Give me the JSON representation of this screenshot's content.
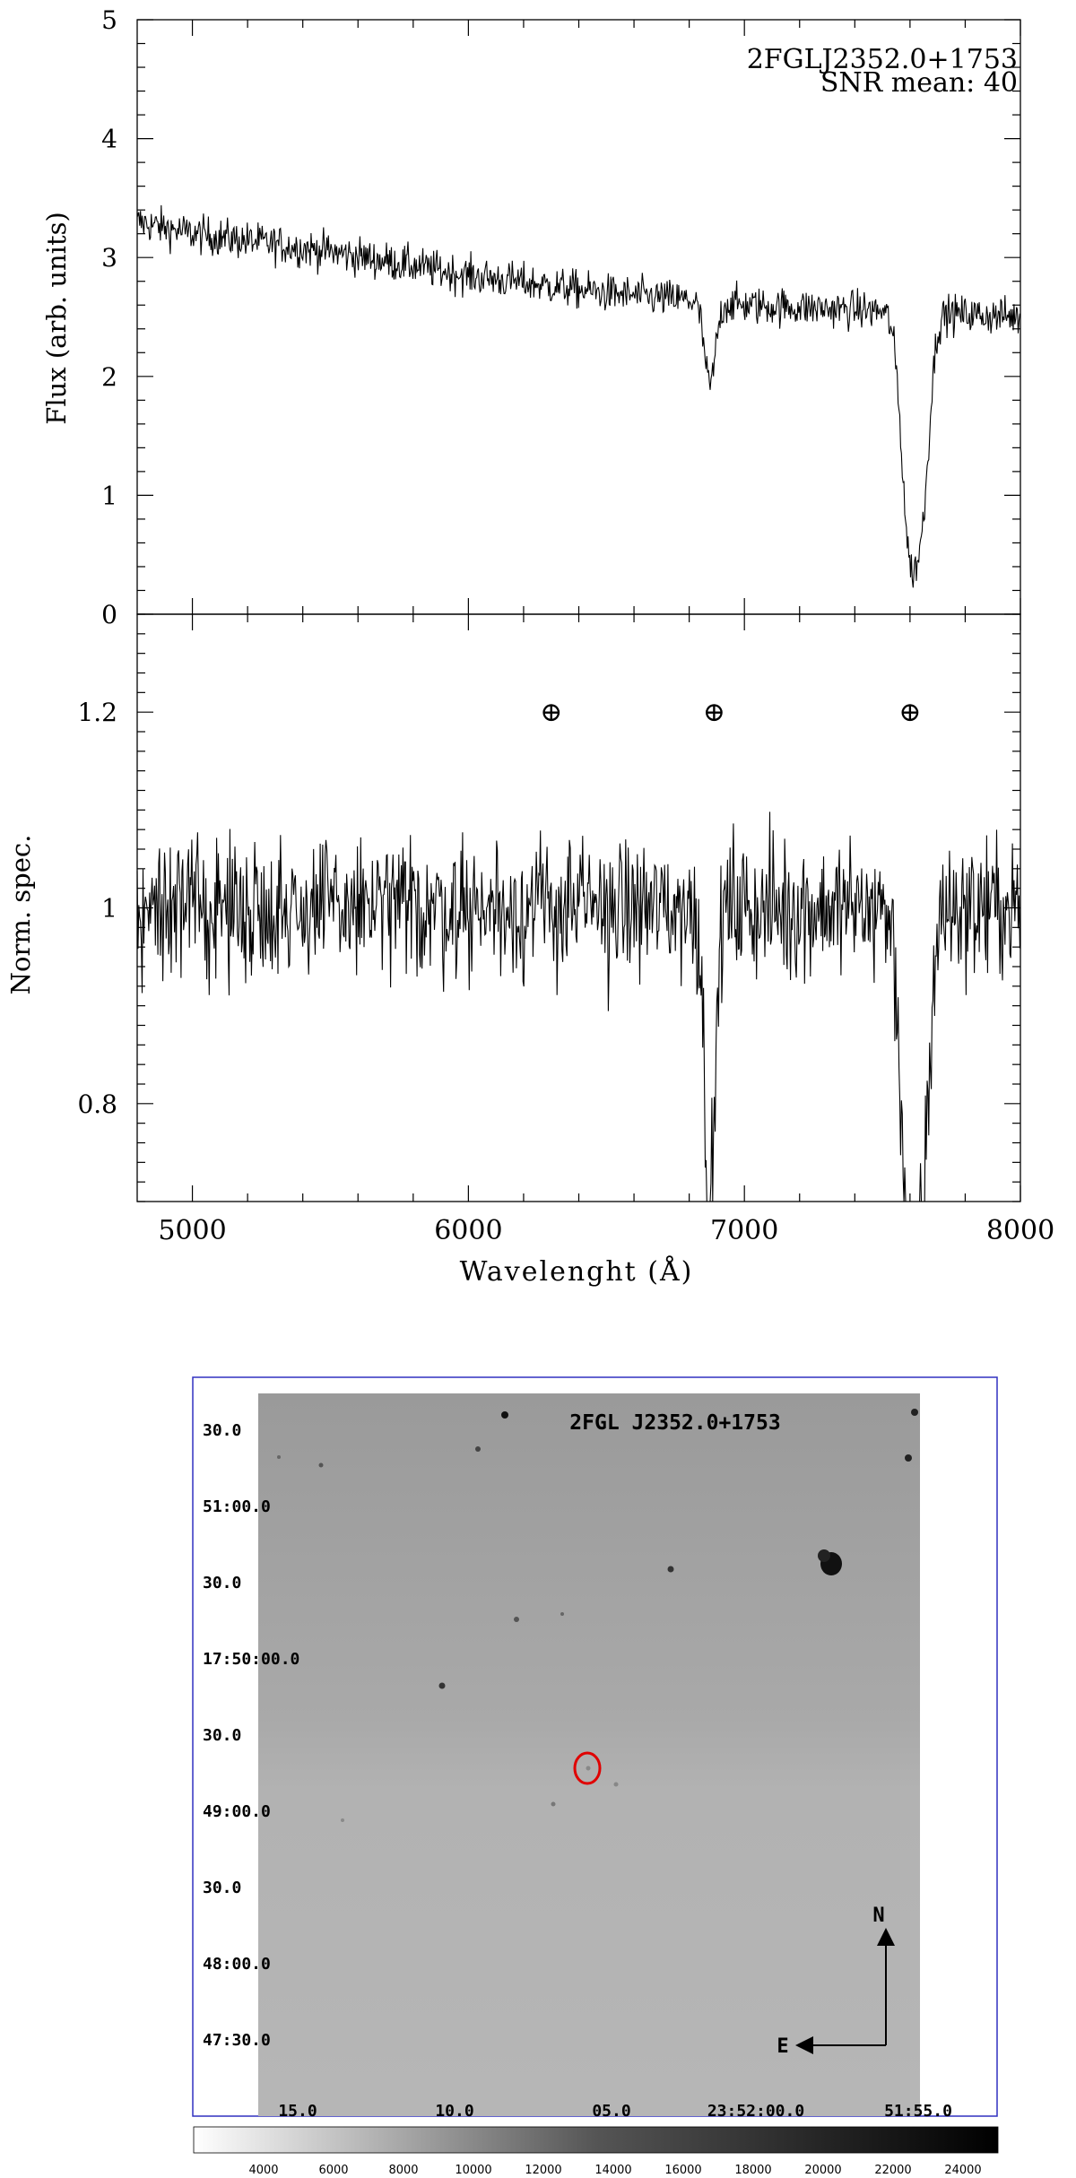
{
  "spectrum_panel": {
    "annotation_line1": "2FGLJ2352.0+1753",
    "annotation_line2": "SNR mean: 40",
    "top_ylabel": "Flux (arb. units)",
    "bottom_ylabel": "Norm. spec.",
    "xlabel": "Wavelenght (Å)",
    "telluric_symbol": "⊕"
  },
  "finding_chart": {
    "title": "2FGL J2352.0+1753",
    "north_label": "N",
    "east_label": "E"
  },
  "chart_data": [
    {
      "type": "line",
      "panel": "top",
      "title": "",
      "annotations": [
        "2FGLJ2352.0+1753",
        "SNR mean: 40"
      ],
      "xlabel": "",
      "ylabel": "Flux (arb. units)",
      "xlim": [
        4800,
        8000
      ],
      "ylim": [
        0,
        5
      ],
      "x_ticks": [
        5000,
        6000,
        7000,
        8000
      ],
      "y_ticks": [
        0,
        1,
        2,
        3,
        4,
        5
      ],
      "y_tick_labels": [
        "0",
        "1",
        "2",
        "3",
        "4",
        "5"
      ],
      "continuum_x": [
        4800,
        5000,
        5500,
        6000,
        6500,
        7000,
        7500,
        8000
      ],
      "continuum_y": [
        3.3,
        3.2,
        3.05,
        2.85,
        2.7,
        2.6,
        2.55,
        2.5
      ],
      "absorption_features": [
        {
          "center": 6875,
          "depth": 0.7,
          "width": 20
        },
        {
          "center": 7600,
          "depth": 1.95,
          "width": 30
        },
        {
          "center": 7650,
          "depth": 1.2,
          "width": 25
        }
      ],
      "noise_amplitude": 0.08,
      "grid": false
    },
    {
      "type": "line",
      "panel": "bottom",
      "title": "",
      "xlabel": "Wavelenght (Å)",
      "ylabel": "Norm. spec.",
      "xlim": [
        4800,
        8000
      ],
      "ylim": [
        0.7,
        1.3
      ],
      "x_ticks": [
        5000,
        6000,
        7000,
        8000
      ],
      "x_tick_labels": [
        "5000",
        "6000",
        "7000",
        "8000"
      ],
      "y_ticks": [
        0.8,
        1.0,
        1.2
      ],
      "y_tick_labels": [
        "0.8",
        "1",
        "1.2"
      ],
      "telluric_markers_x": [
        6300,
        6890,
        7600
      ],
      "telluric_markers_y": 1.2,
      "continuum_y": 1.0,
      "absorption_features": [
        {
          "center": 6875,
          "depth": 0.32,
          "width": 18
        },
        {
          "center": 7600,
          "depth": 0.35,
          "width": 30
        },
        {
          "center": 7650,
          "depth": 0.2,
          "width": 25
        }
      ],
      "noise_amplitude": 0.035,
      "grid": false
    },
    {
      "type": "image",
      "title": "2FGL J2352.0+1753",
      "ra_tick_labels": [
        "15.0",
        "10.0",
        "05.0",
        "23:52:00.0",
        "51:55.0"
      ],
      "dec_tick_labels": [
        "30.0",
        "51:00.0",
        "30.0",
        "17:50:00.0",
        "30.0",
        "49:00.0",
        "30.0",
        "48:00.0",
        "47:30.0"
      ],
      "colorbar_ticks": [
        4000,
        6000,
        8000,
        10000,
        12000,
        14000,
        16000,
        18000,
        20000,
        22000,
        24000
      ],
      "colorbar_tick_labels": [
        "4000",
        "6000",
        "8000",
        "10000",
        "12000",
        "14000",
        "16000",
        "18000",
        "20000",
        "22000",
        "24000"
      ],
      "colorbar_range": [
        2000,
        25000
      ],
      "target_marker_color": "#e00000",
      "compass": [
        "N",
        "E"
      ]
    }
  ]
}
